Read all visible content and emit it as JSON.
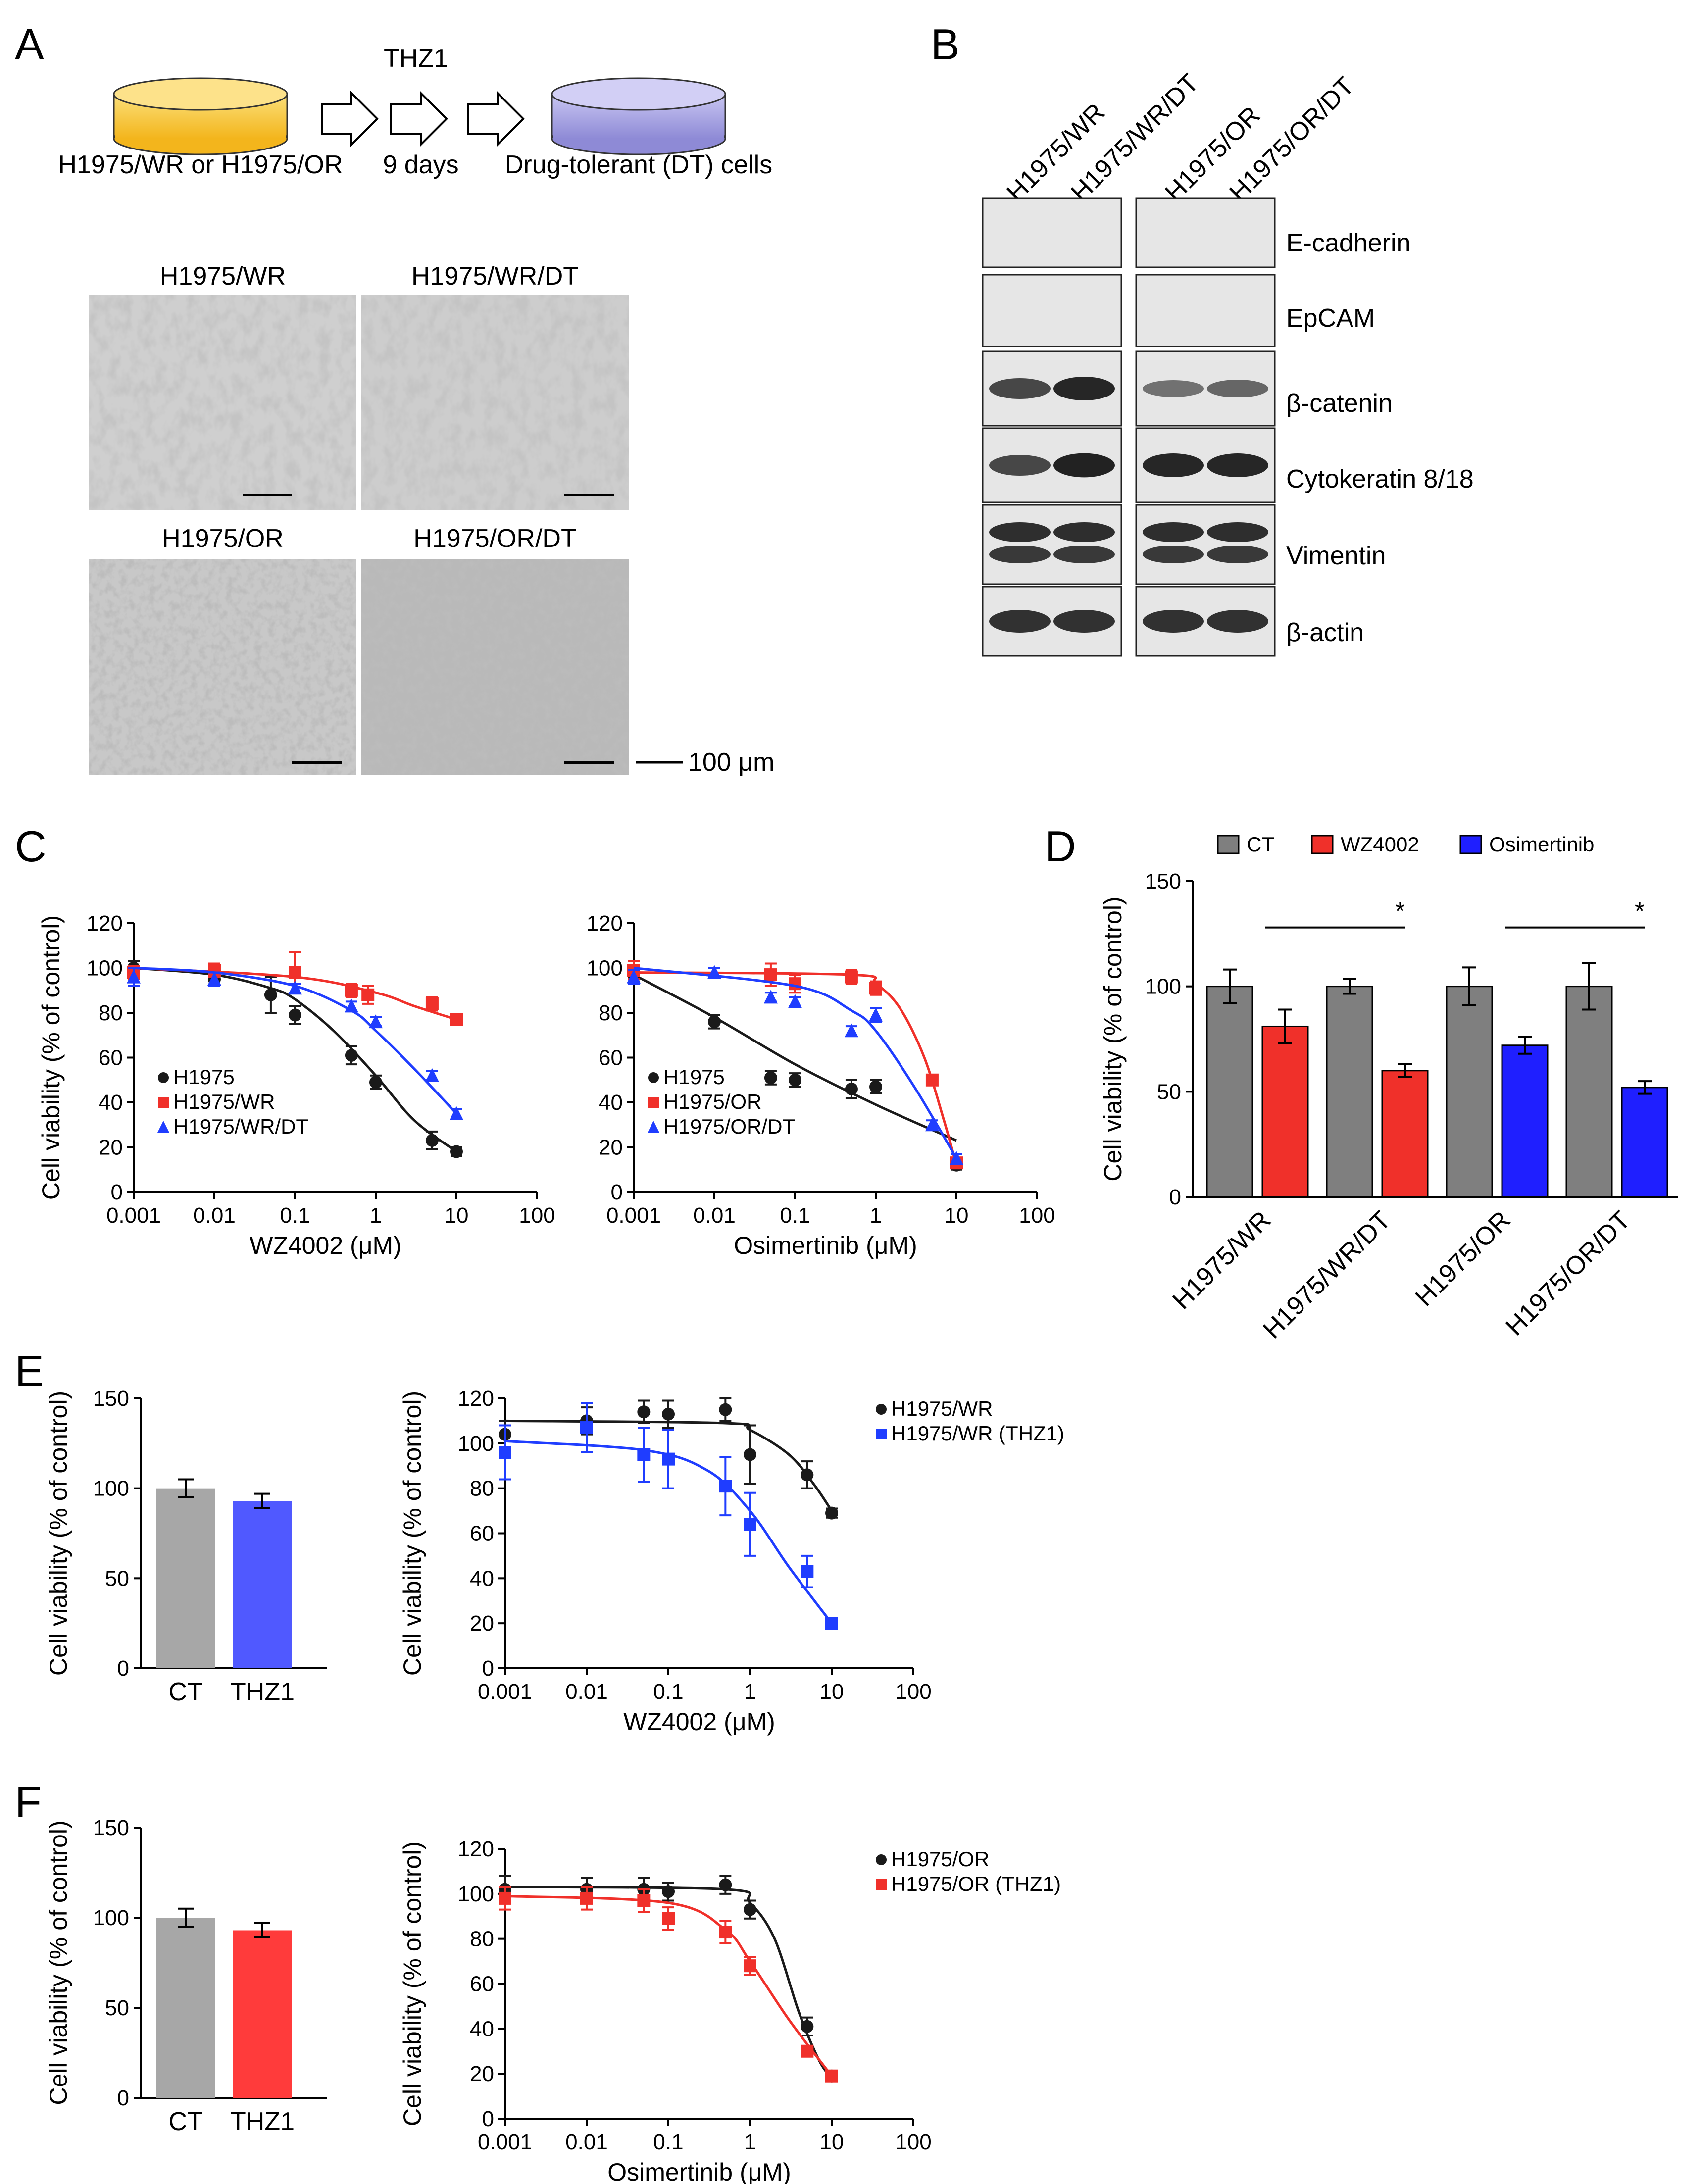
{
  "panels": {
    "a": "A",
    "b": "B",
    "c": "C",
    "d": "D",
    "e": "E",
    "f": "F"
  },
  "colors": {
    "black": "#1a1a1a",
    "red": "#f0302a",
    "blue": "#1f3dff",
    "grey": "#808080",
    "bar_grey": "#a7a7a7",
    "bar_blue": "#5059ff",
    "bar_red": "#ff3b3b",
    "dish_yellow": "#f8c53a",
    "dish_purple": "#a9a6e3"
  },
  "panel_a": {
    "drug": "THZ1",
    "start_label": "H1975/WR or H1975/OR",
    "duration": "9 days",
    "end_label": "Drug-tolerant (DT) cells",
    "micrographs": [
      "H1975/WR",
      "H1975/WR/DT",
      "H1975/OR",
      "H1975/OR/DT"
    ],
    "scale_bar": "100 μm"
  },
  "panel_b": {
    "lanes": [
      "H1975/WR",
      "H1975/WR/DT",
      "H1975/OR",
      "H1975/OR/DT"
    ],
    "proteins": [
      "E-cadherin",
      "EpCAM",
      "β-catenin",
      "Cytokeratin 8/18",
      "Vimentin",
      "β-actin"
    ]
  },
  "chart_data": [
    {
      "id": "C-left",
      "type": "line",
      "xscale": "log",
      "xlabel": "WZ4002 (μM)",
      "ylabel": "Cell viability (% of control)",
      "xlim": [
        0.001,
        100
      ],
      "ylim": [
        0,
        120
      ],
      "xticks": [
        "0.001",
        "0.01",
        "0.1",
        "1",
        "10",
        "100"
      ],
      "yticks": [
        "0",
        "20",
        "40",
        "60",
        "80",
        "100",
        "120"
      ],
      "series": [
        {
          "name": "H1975",
          "marker": "circle",
          "color": "black",
          "x": [
            0.001,
            0.01,
            0.05,
            0.1,
            0.5,
            1,
            5,
            10
          ],
          "y": [
            100,
            95,
            88,
            79,
            61,
            49,
            23,
            18
          ],
          "err": [
            3,
            3,
            8,
            4,
            4,
            3,
            4,
            2
          ],
          "fit": [
            [
              0.001,
              100
            ],
            [
              0.01,
              97
            ],
            [
              0.05,
              91
            ],
            [
              0.1,
              86
            ],
            [
              0.3,
              72
            ],
            [
              1,
              52
            ],
            [
              3,
              32
            ],
            [
              10,
              18
            ]
          ]
        },
        {
          "name": "H1975/WR",
          "marker": "square",
          "color": "red",
          "x": [
            0.001,
            0.01,
            0.1,
            0.5,
            0.8,
            5,
            10
          ],
          "y": [
            98,
            99,
            98,
            90,
            88,
            84,
            77
          ],
          "err": [
            3,
            3,
            9,
            3,
            4,
            3,
            2
          ],
          "fit": [
            [
              0.001,
              100
            ],
            [
              0.1,
              96
            ],
            [
              1,
              89
            ],
            [
              3,
              83
            ],
            [
              10,
              77
            ]
          ]
        },
        {
          "name": "H1975/WR/DT",
          "marker": "triangle",
          "color": "blue",
          "x": [
            0.001,
            0.01,
            0.1,
            0.5,
            1,
            5,
            10
          ],
          "y": [
            96,
            95,
            91,
            83,
            76,
            52,
            35
          ],
          "err": [
            4,
            3,
            2,
            2,
            2,
            2,
            2
          ],
          "fit": [
            [
              0.001,
              100
            ],
            [
              0.01,
              98
            ],
            [
              0.1,
              92
            ],
            [
              0.5,
              81
            ],
            [
              1,
              72
            ],
            [
              3,
              55
            ],
            [
              10,
              35
            ]
          ]
        }
      ]
    },
    {
      "id": "C-right",
      "type": "line",
      "xscale": "log",
      "xlabel": "Osimertinib (μM)",
      "ylabel": "",
      "xlim": [
        0.001,
        100
      ],
      "ylim": [
        0,
        120
      ],
      "xticks": [
        "0.001",
        "0.01",
        "0.1",
        "1",
        "10",
        "100"
      ],
      "yticks": [
        "0",
        "20",
        "40",
        "60",
        "80",
        "100",
        "120"
      ],
      "series": [
        {
          "name": "H1975",
          "marker": "circle",
          "color": "black",
          "x": [
            0.001,
            0.01,
            0.05,
            0.1,
            0.5,
            1,
            10
          ],
          "y": [
            97,
            76,
            51,
            50,
            46,
            47,
            12
          ],
          "err": [
            3,
            3,
            3,
            3,
            4,
            3,
            2
          ],
          "fit": [
            [
              0.001,
              97
            ],
            [
              0.01,
              78
            ],
            [
              0.1,
              57
            ],
            [
              1,
              39
            ],
            [
              10,
              23
            ]
          ]
        },
        {
          "name": "H1975/OR",
          "marker": "square",
          "color": "red",
          "x": [
            0.001,
            0.05,
            0.1,
            0.5,
            1,
            5,
            10
          ],
          "y": [
            99,
            97,
            93,
            96,
            91,
            50,
            13
          ],
          "err": [
            4,
            5,
            4,
            3,
            3,
            2,
            2
          ],
          "fit": [
            [
              0.001,
              98
            ],
            [
              0.5,
              97
            ],
            [
              1,
              93
            ],
            [
              2,
              82
            ],
            [
              4,
              60
            ],
            [
              7,
              32
            ],
            [
              10,
              12
            ]
          ]
        },
        {
          "name": "H1975/OR/DT",
          "marker": "triangle",
          "color": "blue",
          "x": [
            0.001,
            0.01,
            0.05,
            0.1,
            0.5,
            1,
            5,
            10
          ],
          "y": [
            96,
            98,
            87,
            85,
            72,
            79,
            30,
            15
          ],
          "err": [
            3,
            2,
            2,
            2,
            2,
            3,
            2,
            2
          ],
          "fit": [
            [
              0.001,
              100
            ],
            [
              0.1,
              92
            ],
            [
              0.5,
              81
            ],
            [
              1,
              72
            ],
            [
              3,
              47
            ],
            [
              10,
              15
            ]
          ]
        }
      ]
    },
    {
      "id": "D",
      "type": "bar",
      "ylabel": "Cell viability (% of control)",
      "ylim": [
        0,
        150
      ],
      "yticks": [
        "0",
        "50",
        "100",
        "150"
      ],
      "legend": [
        "CT",
        "WZ4002",
        "Osimertinib"
      ],
      "categories": [
        "H1975/WR",
        "H1975/WR/DT",
        "H1975/OR",
        "H1975/OR/DT"
      ],
      "series": [
        {
          "name": "CT",
          "color": "grey",
          "values": [
            100,
            100,
            100,
            100
          ],
          "err": [
            8,
            3.5,
            9,
            11
          ]
        },
        {
          "name": "WZ4002",
          "color": "red",
          "values": [
            81,
            60,
            null,
            null
          ],
          "err": [
            8,
            3,
            null,
            null
          ]
        },
        {
          "name": "Osimertinib",
          "color": "blue",
          "values": [
            null,
            null,
            72,
            52
          ],
          "err": [
            null,
            null,
            4,
            3
          ]
        }
      ],
      "significance": "*"
    },
    {
      "id": "E-left",
      "type": "bar",
      "ylabel": "Cell viability (% of control)",
      "ylim": [
        0,
        150
      ],
      "yticks": [
        "0",
        "50",
        "100",
        "150"
      ],
      "categories": [
        "CT",
        "THZ1"
      ],
      "values": [
        100,
        93
      ],
      "err": [
        5,
        4
      ],
      "colors": [
        "bar_grey",
        "bar_blue"
      ]
    },
    {
      "id": "E-right",
      "type": "line",
      "xscale": "log",
      "xlabel": "WZ4002 (μM)",
      "ylabel": "Cell viability (% of control)",
      "xlim": [
        0.001,
        100
      ],
      "ylim": [
        0,
        120
      ],
      "xticks": [
        "0.001",
        "0.01",
        "0.1",
        "1",
        "10",
        "100"
      ],
      "yticks": [
        "0",
        "20",
        "40",
        "60",
        "80",
        "100",
        "120"
      ],
      "series": [
        {
          "name": "H1975/WR",
          "marker": "circle",
          "color": "black",
          "x": [
            0.001,
            0.01,
            0.05,
            0.1,
            0.5,
            1,
            5,
            10
          ],
          "y": [
            104,
            110,
            114,
            113,
            115,
            95,
            86,
            69
          ],
          "err": [
            6,
            6,
            5,
            6,
            5,
            13,
            6,
            2
          ],
          "fit": [
            [
              0.001,
              110
            ],
            [
              0.5,
              109
            ],
            [
              1,
              106
            ],
            [
              3,
              95
            ],
            [
              6,
              82
            ],
            [
              10,
              70
            ]
          ]
        },
        {
          "name": "H1975/WR (THZ1)",
          "marker": "square",
          "color": "blue",
          "x": [
            0.001,
            0.01,
            0.05,
            0.1,
            0.5,
            1,
            5,
            10
          ],
          "y": [
            96,
            107,
            95,
            93,
            81,
            64,
            43,
            20
          ],
          "err": [
            12,
            11,
            12,
            13,
            13,
            14,
            7,
            2
          ],
          "fit": [
            [
              0.001,
              101
            ],
            [
              0.05,
              97
            ],
            [
              0.3,
              88
            ],
            [
              1,
              70
            ],
            [
              3,
              45
            ],
            [
              10,
              20
            ]
          ]
        }
      ],
      "legend": [
        "H1975/WR",
        "H1975/WR (THZ1)"
      ]
    },
    {
      "id": "F-left",
      "type": "bar",
      "ylabel": "Cell viability (% of control)",
      "ylim": [
        0,
        150
      ],
      "yticks": [
        "0",
        "50",
        "100",
        "150"
      ],
      "categories": [
        "CT",
        "THZ1"
      ],
      "values": [
        100,
        93
      ],
      "err": [
        5,
        4
      ],
      "colors": [
        "bar_grey",
        "bar_red"
      ]
    },
    {
      "id": "F-right",
      "type": "line",
      "xscale": "log",
      "xlabel": "Osimertinib (μM)",
      "ylabel": "Cell viability (% of control)",
      "xlim": [
        0.001,
        100
      ],
      "ylim": [
        0,
        120
      ],
      "xticks": [
        "0.001",
        "0.01",
        "0.1",
        "1",
        "10",
        "100"
      ],
      "yticks": [
        "0",
        "20",
        "40",
        "60",
        "80",
        "100",
        "120"
      ],
      "series": [
        {
          "name": "H1975/OR",
          "marker": "circle",
          "color": "black",
          "x": [
            0.001,
            0.01,
            0.05,
            0.1,
            0.5,
            1,
            5,
            10
          ],
          "y": [
            102,
            102,
            102,
            101,
            104,
            93,
            41,
            19
          ],
          "err": [
            6,
            5,
            5,
            4,
            4,
            4,
            4,
            2
          ],
          "fit": [
            [
              0.001,
              103
            ],
            [
              0.5,
              102
            ],
            [
              1,
              96
            ],
            [
              2,
              80
            ],
            [
              4,
              47
            ],
            [
              7,
              26
            ],
            [
              10,
              18
            ]
          ]
        },
        {
          "name": "H1975/OR (THZ1)",
          "marker": "square",
          "color": "red",
          "x": [
            0.001,
            0.01,
            0.05,
            0.1,
            0.5,
            1,
            5,
            10
          ],
          "y": [
            98,
            98,
            97,
            89,
            83,
            68,
            30,
            19
          ],
          "err": [
            5,
            5,
            5,
            5,
            5,
            4,
            2,
            2
          ],
          "fit": [
            [
              0.001,
              99
            ],
            [
              0.1,
              96
            ],
            [
              0.5,
              84
            ],
            [
              1,
              70
            ],
            [
              3,
              44
            ],
            [
              10,
              19
            ]
          ]
        }
      ],
      "legend": [
        "H1975/OR",
        "H1975/OR (THZ1)"
      ]
    }
  ]
}
